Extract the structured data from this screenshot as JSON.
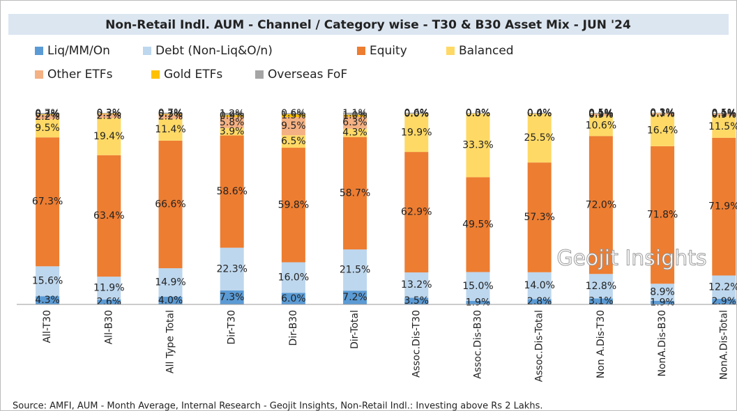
{
  "chart_data": {
    "type": "stacked_bar",
    "title": "Non-Retail Indl. AUM - Channel / Category wise - T30 & B30 Asset Mix - JUN '24",
    "categories": [
      "All-T30",
      "All-B30",
      "All Type Total",
      "Dir-T30",
      "Dir-B30",
      "Dir-Total",
      "Assoc.Dis-T30",
      "Assoc.Dis-B30",
      "Assoc.Dis-Total",
      "Non A.Dis-T30",
      "NonA.Dis-B30",
      "NonA.Dis-Total"
    ],
    "ylim": [
      0,
      100
    ],
    "series": [
      {
        "name": "Liq/MM/On",
        "color": "#5b9bd5",
        "values": [
          4.3,
          2.6,
          4.0,
          7.3,
          6.0,
          7.2,
          3.5,
          1.9,
          2.8,
          3.1,
          1.9,
          2.9
        ],
        "value_labels": [
          "4.3%",
          "2.6%",
          "4.0%",
          "7.3%",
          "6.0%",
          "7.2%",
          "3.5%",
          "1.9%",
          "2.8%",
          "3.1%",
          "1.9%",
          "2.9%"
        ]
      },
      {
        "name": "Debt (Non-Liq&O/n)",
        "color": "#bdd7ee",
        "values": [
          15.6,
          11.9,
          14.9,
          22.3,
          16.0,
          21.5,
          13.2,
          15.0,
          14.0,
          12.8,
          8.9,
          12.2
        ],
        "value_labels": [
          "15.6%",
          "11.9%",
          "14.9%",
          "22.3%",
          "16.0%",
          "21.5%",
          "13.2%",
          "15.0%",
          "14.0%",
          "12.8%",
          "8.9%",
          "12.2%"
        ]
      },
      {
        "name": "Equity",
        "color": "#ed7d31",
        "values": [
          67.3,
          63.4,
          66.6,
          58.6,
          59.8,
          58.7,
          62.9,
          49.5,
          57.3,
          72.0,
          71.8,
          71.9
        ],
        "value_labels": [
          "67.3%",
          "63.4%",
          "66.6%",
          "58.6%",
          "59.8%",
          "58.7%",
          "62.9%",
          "49.5%",
          "57.3%",
          "72.0%",
          "71.8%",
          "71.9%"
        ]
      },
      {
        "name": "Balanced",
        "color": "#ffd966",
        "values": [
          9.5,
          19.4,
          11.4,
          3.9,
          6.5,
          4.3,
          19.9,
          33.3,
          25.5,
          10.6,
          16.4,
          11.5
        ],
        "value_labels": [
          "9.5%",
          "19.4%",
          "11.4%",
          "3.9%",
          "6.5%",
          "4.3%",
          "19.9%",
          "33.3%",
          "25.5%",
          "10.6%",
          "16.4%",
          "11.5%"
        ]
      },
      {
        "name": "Other ETFs",
        "color": "#f4b183",
        "values": [
          2.2,
          2.1,
          2.2,
          5.8,
          9.5,
          6.3,
          0.0,
          0.0,
          0.0,
          0.9,
          0.7,
          0.9
        ],
        "value_labels": [
          "2.2%",
          "2.1%",
          "2.2%",
          "5.8%",
          "9.5%",
          "6.3%",
          "0.0%",
          "0.0%",
          "0.0%",
          "0.9%",
          "0.7%",
          "0.9%"
        ]
      },
      {
        "name": "Gold ETFs",
        "color": "#ffc000",
        "values": [
          0.3,
          0.3,
          0.3,
          0.9,
          1.5,
          1.0,
          0.0,
          0.0,
          0.0,
          0.1,
          0.1,
          0.1
        ],
        "value_labels": [
          "0.3%",
          "0.3%",
          "0.3%",
          "0.9%",
          "1.5%",
          "1.0%",
          "0.0%",
          "0.0%",
          "0.0%",
          "0.1%",
          "0.1%",
          "0.1%"
        ]
      },
      {
        "name": "Overseas FoF",
        "color": "#a5a5a5",
        "values": [
          0.7,
          0.3,
          0.7,
          1.2,
          0.6,
          1.1,
          0.6,
          0.3,
          0.4,
          0.5,
          0.3,
          0.5
        ],
        "value_labels": [
          "0.7%",
          "0.3%",
          "0.7%",
          "1.2%",
          "0.6%",
          "1.1%",
          "0.6%",
          "0.3%",
          "0.4%",
          "0.5%",
          "0.3%",
          "0.5%"
        ]
      }
    ],
    "watermark": "Geojit Insights",
    "source": "Source: AMFI, AUM - Month Average, Internal Research - Geojit Insights, Non-Retail Indl.: Investing above Rs 2 Lakhs."
  }
}
